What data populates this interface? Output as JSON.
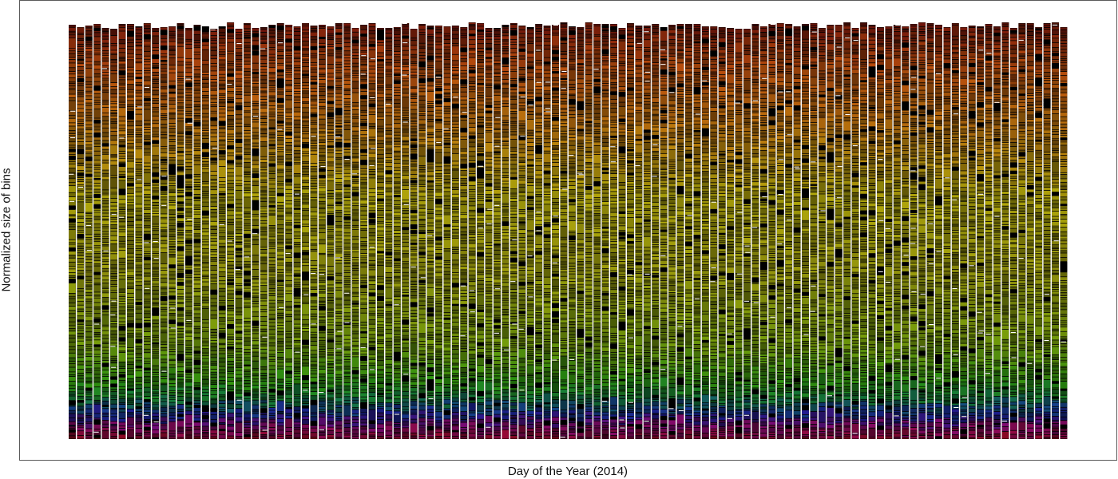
{
  "chart_data": {
    "type": "bar",
    "subtype": "stacked-normalized",
    "title": "",
    "xlabel": "Day of the Year (2014)",
    "ylabel": "Normalized size of bins",
    "x_count": 120,
    "ylim": [
      0,
      1
    ],
    "grid": false,
    "legend": "none",
    "stack_order_bottom_to_top": "crimson → magenta → navy/blue → teal → green → olive → yellow → orange → dark red",
    "colors": {
      "bottom": "#8b0a3c",
      "blue": "#1a1e8a",
      "green": "#1f8a12",
      "olive": "#8f9a10",
      "yellow": "#b0a810",
      "orange": "#b0570e",
      "top": "#7a1a0c",
      "separator": "#000000",
      "border": "#5a5a5a"
    }
  }
}
